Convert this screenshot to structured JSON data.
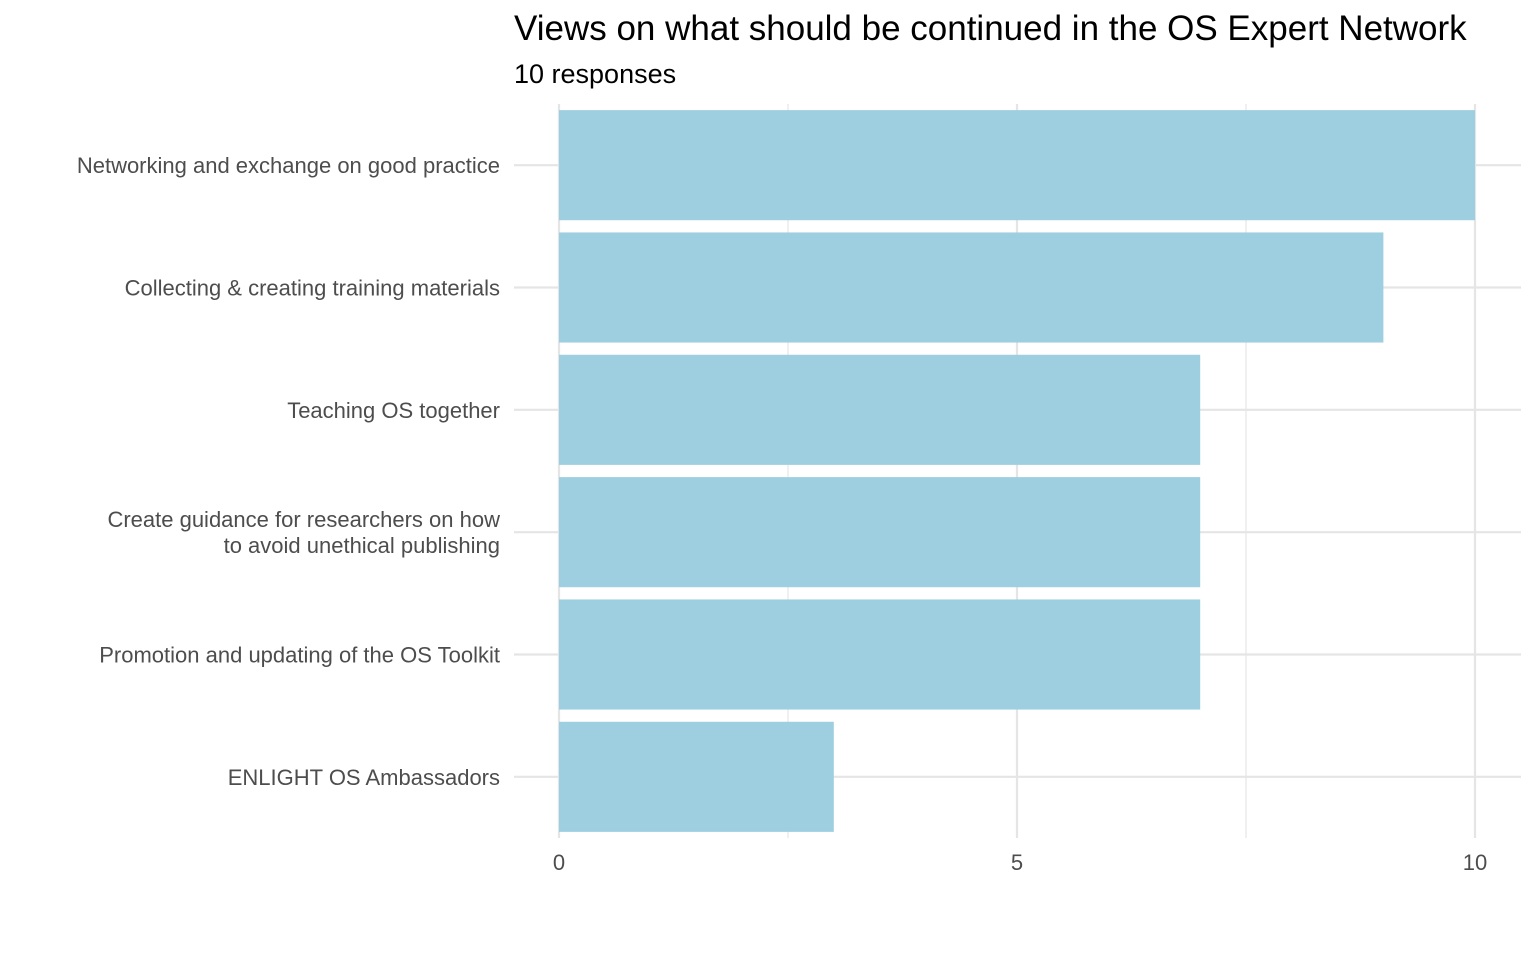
{
  "chart_data": {
    "type": "bar",
    "orientation": "horizontal",
    "title": "Views on what should be continued in the OS Expert Network",
    "subtitle": "10 responses",
    "xlabel": "",
    "ylabel": "",
    "categories": [
      [
        "Networking and exchange on good practice"
      ],
      [
        "Collecting & creating training materials"
      ],
      [
        "Teaching OS together"
      ],
      [
        "Create guidance for researchers on how",
        "to avoid unethical publishing"
      ],
      [
        "Promotion and updating of the OS Toolkit"
      ],
      [
        "ENLIGHT OS Ambassadors"
      ]
    ],
    "values": [
      10,
      9,
      7,
      7,
      7,
      3
    ],
    "xlim": [
      0,
      10.5
    ],
    "x_ticks": [
      0,
      5,
      10
    ],
    "grid": true,
    "legend": "none",
    "bar_color": "#9ecfe0",
    "grid_color": "#e5e5e5"
  }
}
